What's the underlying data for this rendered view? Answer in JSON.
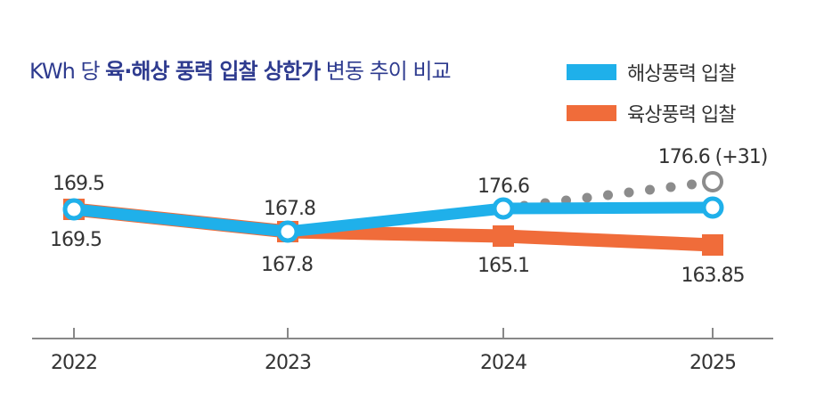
{
  "chart_data": {
    "type": "line",
    "title_prefix": "KWh 당 ",
    "title_bold": "육·해상 풍력 입찰 상한가",
    "title_suffix": " 변동 추이 비교",
    "categories": [
      "2022",
      "2023",
      "2024",
      "2025"
    ],
    "series": [
      {
        "name": "해상풍력 입찰",
        "color": "#1fb0ea",
        "marker": "circle",
        "values": [
          169.5,
          167.8,
          176.6,
          176.6
        ],
        "labels": [
          "169.5",
          "167.8",
          "176.6",
          null
        ]
      },
      {
        "name": "육상풍력 입찰",
        "color": "#f06c3a",
        "marker": "square",
        "values": [
          169.5,
          167.8,
          165.1,
          163.85
        ],
        "labels": [
          "169.5",
          "167.8",
          "165.1",
          "163.85"
        ]
      }
    ],
    "projection": {
      "from_category": "2024",
      "to_category": "2025",
      "label": "176.6 (+31)",
      "color": "#8c8c8c",
      "style": "dotted"
    },
    "xlabel": "",
    "ylabel": "",
    "grid": false,
    "legend": "top-right"
  }
}
